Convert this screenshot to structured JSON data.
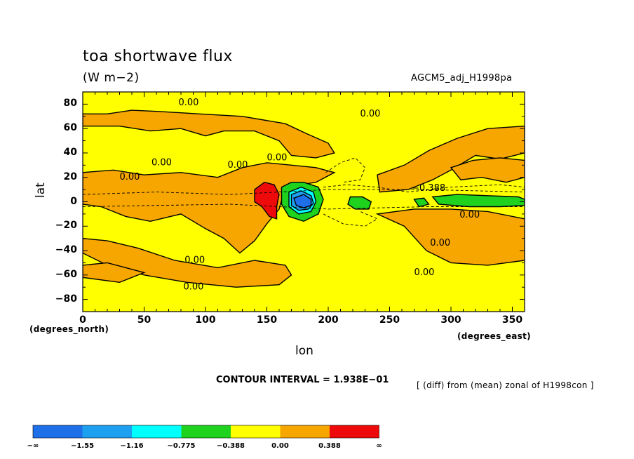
{
  "chart_data": {
    "type": "heatmap",
    "title": "toa shortwave flux",
    "units": "(W m−2)",
    "run_label": "AGCM5_adj_H1998pa",
    "xlabel": "lon",
    "ylabel": "lat",
    "x_subtitle_left": "(degrees_north)",
    "x_subtitle_right": "(degrees_east)",
    "xlim": [
      0,
      360
    ],
    "ylim": [
      -90,
      90
    ],
    "xticks": [
      "0",
      "50",
      "100",
      "150",
      "200",
      "250",
      "300",
      "350"
    ],
    "yticks": [
      "80",
      "60",
      "40",
      "20",
      "0",
      "−20",
      "−40",
      "−60",
      "−80"
    ],
    "contour_interval_text": "CONTOUR INTERVAL = 1.938E−01",
    "diff_note": "[ (diff) from (mean) zonal of H1998con ]",
    "contour_labels": [
      "0.00",
      "0.00",
      "0.00",
      "0.00",
      "0.00",
      "0.00",
      "0.00",
      "0.00",
      "−0.388",
      "0.00",
      "0.00",
      "0.00"
    ],
    "colorbar": {
      "labels": [
        "−∞",
        "−1.55",
        "−1.16",
        "−0.775",
        "−0.388",
        "0.00",
        "0.388",
        "∞"
      ],
      "colors": [
        "#1f6fe8",
        "#1ea0f0",
        "#00ffff",
        "#1ed21e",
        "#ffff00",
        "#f7a600",
        "#ee0a0a"
      ]
    },
    "colors": {
      "background": "#ffff00",
      "positive": "#f7a600",
      "strong_positive": "#ee0a0a",
      "negative": "#1ed21e",
      "strong_negative": "#1f6fe8",
      "mid_negative": "#1ea0f0",
      "cyan": "#00ffff"
    }
  }
}
